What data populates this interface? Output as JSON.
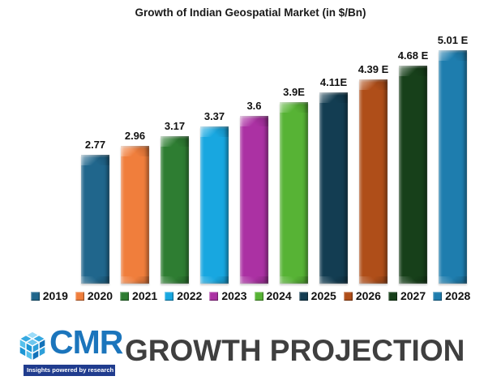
{
  "chart_data": {
    "type": "bar",
    "title": "Growth of Indian Geospatial Market (in $/Bn)",
    "categories": [
      "2019",
      "2020",
      "2021",
      "2022",
      "2023",
      "2024",
      "2025",
      "2026",
      "2027",
      "2028"
    ],
    "values": [
      2.77,
      2.96,
      3.17,
      3.37,
      3.6,
      3.9,
      4.11,
      4.39,
      4.68,
      5.01
    ],
    "value_labels": [
      "2.77",
      "2.96",
      "3.17",
      "3.37",
      "3.6",
      "3.9E",
      "4.11E",
      "4.39 E",
      "4.68 E",
      "5.01 E"
    ],
    "colors": [
      "#20668C",
      "#F07E3C",
      "#2E7D32",
      "#18A7E0",
      "#AB31A3",
      "#57B335",
      "#133D52",
      "#AF4E19",
      "#17401A",
      "#1E7DAE"
    ],
    "xlabel": "",
    "ylabel": "",
    "ylim": [
      0,
      5.5
    ],
    "grid": false,
    "legend_position": "bottom"
  },
  "footer": {
    "logo": {
      "text": "CMR",
      "tagline": "Insights powered by research",
      "brand_color": "#1B75BC",
      "tagline_bg": "#203C8E"
    },
    "heading": "GROWTH PROJECTION"
  }
}
